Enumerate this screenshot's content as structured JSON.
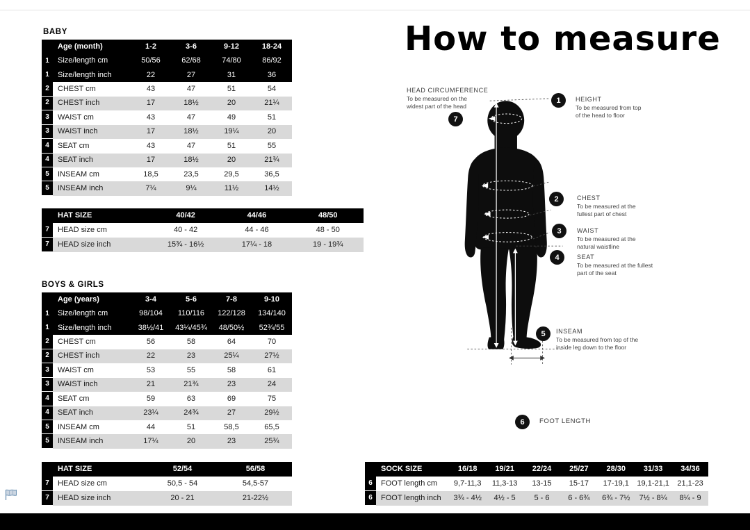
{
  "page": {
    "title": "How to measure"
  },
  "sections": {
    "baby_label": "BABY",
    "kids_label": "BOYS & GIRLS"
  },
  "colors": {
    "row_stripe": "#d9d9d9",
    "table_header": "#000000",
    "flag_blue": "#6f93b4",
    "bottom_bar": "#000000"
  },
  "tables": {
    "baby": {
      "header": {
        "label": "Age (month)",
        "cols": [
          "1-2",
          "3-6",
          "9-12",
          "18-24"
        ]
      },
      "header_rows": [
        {
          "num": "1",
          "label": "Size/length cm",
          "values": [
            "50/56",
            "62/68",
            "74/80",
            "86/92"
          ]
        },
        {
          "num": "1",
          "label": "Size/length inch",
          "values": [
            "22",
            "27",
            "31",
            "36"
          ]
        }
      ],
      "rows": [
        {
          "num": "2",
          "label": "CHEST cm",
          "values": [
            "43",
            "47",
            "51",
            "54"
          ]
        },
        {
          "num": "2",
          "label": "CHEST inch",
          "values": [
            "17",
            "18½",
            "20",
            "21¼"
          ]
        },
        {
          "num": "3",
          "label": "WAIST cm",
          "values": [
            "43",
            "47",
            "49",
            "51"
          ]
        },
        {
          "num": "3",
          "label": "WAIST inch",
          "values": [
            "17",
            "18½",
            "19¼",
            "20"
          ]
        },
        {
          "num": "4",
          "label": "SEAT cm",
          "values": [
            "43",
            "47",
            "51",
            "55"
          ]
        },
        {
          "num": "4",
          "label": "SEAT inch",
          "values": [
            "17",
            "18½",
            "20",
            "21¾"
          ]
        },
        {
          "num": "5",
          "label": "INSEAM cm",
          "values": [
            "18,5",
            "23,5",
            "29,5",
            "36,5"
          ]
        },
        {
          "num": "5",
          "label": "INSEAM inch",
          "values": [
            "7¼",
            "9¼",
            "11½",
            "14½"
          ]
        }
      ]
    },
    "baby_hat": {
      "header": {
        "label": "HAT SIZE",
        "cols": [
          "40/42",
          "44/46",
          "48/50"
        ]
      },
      "rows": [
        {
          "num": "7",
          "label": "HEAD size cm",
          "values": [
            "40 - 42",
            "44 - 46",
            "48 - 50"
          ]
        },
        {
          "num": "7",
          "label": "HEAD size inch",
          "values": [
            "15¾ - 16½",
            "17¼ - 18",
            "19 - 19¾"
          ]
        }
      ]
    },
    "kids": {
      "header": {
        "label": "Age (years)",
        "cols": [
          "3-4",
          "5-6",
          "7-8",
          "9-10"
        ]
      },
      "header_rows": [
        {
          "num": "1",
          "label": "Size/length cm",
          "values": [
            "98/104",
            "110/116",
            "122/128",
            "134/140"
          ]
        },
        {
          "num": "1",
          "label": "Size/length inch",
          "values": [
            "38½/41",
            "43¼/45¾",
            "48/50½",
            "52¾/55"
          ]
        }
      ],
      "rows": [
        {
          "num": "2",
          "label": "CHEST cm",
          "values": [
            "56",
            "58",
            "64",
            "70"
          ]
        },
        {
          "num": "2",
          "label": "CHEST inch",
          "values": [
            "22",
            "23",
            "25¼",
            "27½"
          ]
        },
        {
          "num": "3",
          "label": "WAIST cm",
          "values": [
            "53",
            "55",
            "58",
            "61"
          ]
        },
        {
          "num": "3",
          "label": "WAIST inch",
          "values": [
            "21",
            "21¾",
            "23",
            "24"
          ]
        },
        {
          "num": "4",
          "label": "SEAT cm",
          "values": [
            "59",
            "63",
            "69",
            "75"
          ]
        },
        {
          "num": "4",
          "label": "SEAT inch",
          "values": [
            "23¼",
            "24¾",
            "27",
            "29½"
          ]
        },
        {
          "num": "5",
          "label": "INSEAM cm",
          "values": [
            "44",
            "51",
            "58,5",
            "65,5"
          ]
        },
        {
          "num": "5",
          "label": "INSEAM inch",
          "values": [
            "17¼",
            "20",
            "23",
            "25¾"
          ]
        }
      ]
    },
    "kids_hat": {
      "header": {
        "label": "HAT SIZE",
        "cols": [
          "52/54",
          "56/58"
        ]
      },
      "rows": [
        {
          "num": "7",
          "label": "HEAD size cm",
          "values": [
            "50,5 - 54",
            "54,5-57"
          ]
        },
        {
          "num": "7",
          "label": "HEAD size inch",
          "values": [
            "20 - 21",
            "21-22½"
          ]
        }
      ]
    },
    "sock": {
      "header": {
        "label": "SOCK SIZE",
        "cols": [
          "16/18",
          "19/21",
          "22/24",
          "25/27",
          "28/30",
          "31/33",
          "34/36"
        ]
      },
      "rows": [
        {
          "num": "6",
          "label": "FOOT length cm",
          "values": [
            "9,7-11,3",
            "11,3-13",
            "13-15",
            "15-17",
            "17-19,1",
            "19,1-21,1",
            "21,1-23"
          ]
        },
        {
          "num": "6",
          "label": "FOOT length inch",
          "values": [
            "3¾ - 4½",
            "4½ - 5",
            "5 - 6",
            "6 - 6¾",
            "6¾ - 7½",
            "7½ - 8¼",
            "8¼ - 9"
          ]
        }
      ]
    }
  },
  "diagram": {
    "annotations": {
      "head_circumference": {
        "badge": "7",
        "title": "HEAD CIRCUMFERENCE",
        "desc": "To be measured on the\nwidest part of the head"
      },
      "height": {
        "badge": "1",
        "title": "HEIGHT",
        "desc": "To be measured from top\nof the head to floor"
      },
      "chest": {
        "badge": "2",
        "title": "CHEST",
        "desc": "To be measured at the\nfullest part of chest"
      },
      "waist": {
        "badge": "3",
        "title": "WAIST",
        "desc": "To be measured at the\nnatural waistline"
      },
      "seat": {
        "badge": "4",
        "title": "SEAT",
        "desc": "To be measured at the fullest\npart of the seat"
      },
      "inseam": {
        "badge": "5",
        "title": "INSEAM",
        "desc": "To be measured from top of the\ninside leg down to the floor"
      },
      "foot_length": {
        "badge": "6",
        "title": "FOOT LENGTH",
        "desc": ""
      }
    }
  }
}
